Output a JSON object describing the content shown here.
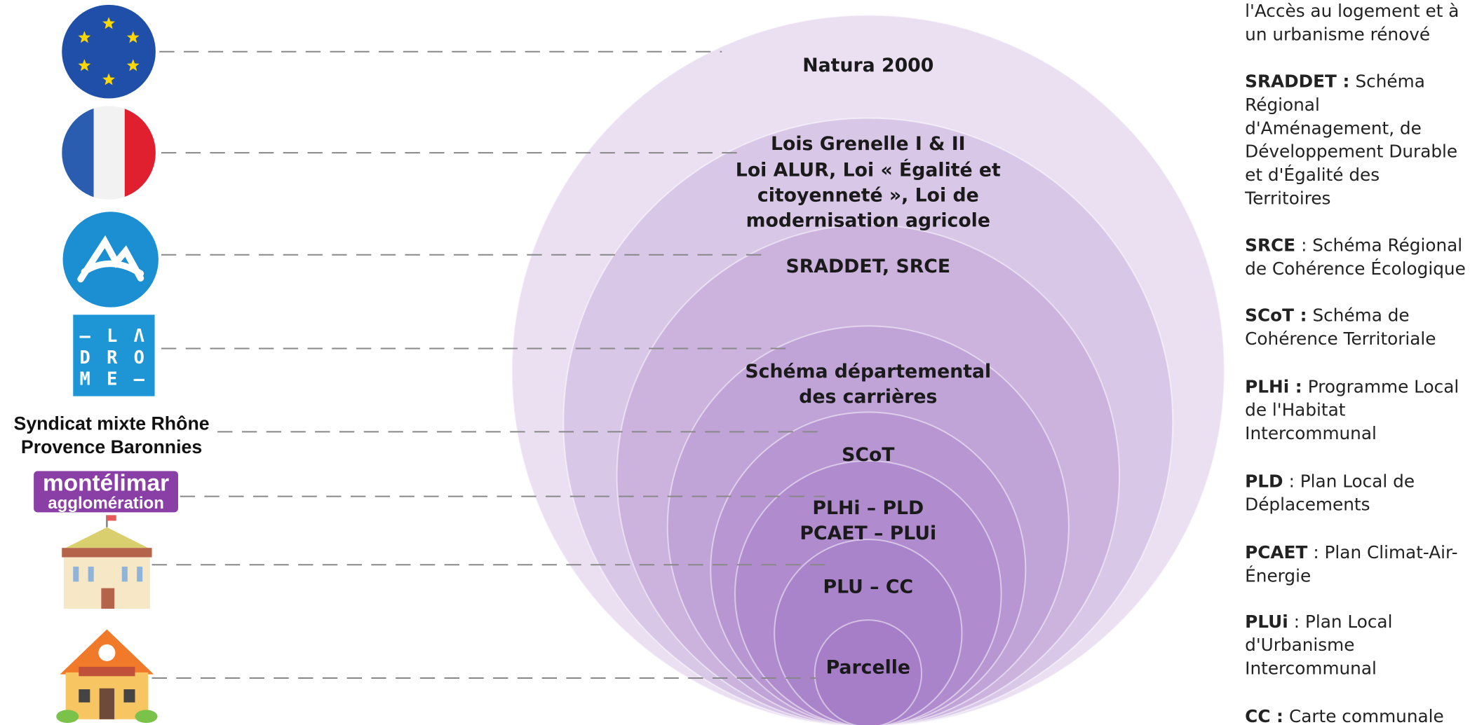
{
  "levels": [
    "Natura 2000",
    [
      "Lois Grenelle I & II",
      "Loi ALUR, Loi « Égalité et",
      "citoyenneté », Loi de",
      "modernisation agricole"
    ],
    "SRADDET, SRCE",
    [
      "Schéma départemental",
      "des carrières"
    ],
    "SCoT",
    [
      "PLHi – PLD",
      "PCAET – PLUi"
    ],
    "PLU – CC",
    "Parcelle"
  ],
  "logos": {
    "drome": [
      "– L Λ",
      "D R O",
      "M E –"
    ],
    "syndicat": [
      "Syndicat mixte Rhône",
      "Provence Baronnies"
    ],
    "montelimar": [
      "montélimar",
      "agglomération"
    ]
  },
  "glossary": {
    "intro": [
      "l'Accès au logement et à",
      "un urbanisme rénové"
    ],
    "entries": [
      {
        "term": "SRADDET :",
        "lines": [
          "Schéma",
          "Régional",
          "d'Aménagement, de",
          "Développement Durable",
          "et d'Égalité des",
          "Territoires"
        ]
      },
      {
        "term": "SRCE",
        "lines": [
          ": Schéma Régional",
          "de Cohérence Écologique"
        ]
      },
      {
        "term": "SCoT :",
        "lines": [
          "Schéma de",
          "Cohérence Territoriale"
        ]
      },
      {
        "term": "PLHi :",
        "lines": [
          "Programme Local",
          "de l'Habitat",
          "Intercommunal"
        ]
      },
      {
        "term": "PLD",
        "lines": [
          ": Plan Local de",
          "Déplacements"
        ]
      },
      {
        "term": "PCAET",
        "lines": [
          ": Plan Climat-Air-",
          "Énergie"
        ]
      },
      {
        "term": "PLUi",
        "lines": [
          ": Plan Local",
          "d'Urbanisme",
          "Intercommunal"
        ]
      },
      {
        "term": "CC :",
        "lines": [
          "Carte communale"
        ]
      }
    ]
  }
}
